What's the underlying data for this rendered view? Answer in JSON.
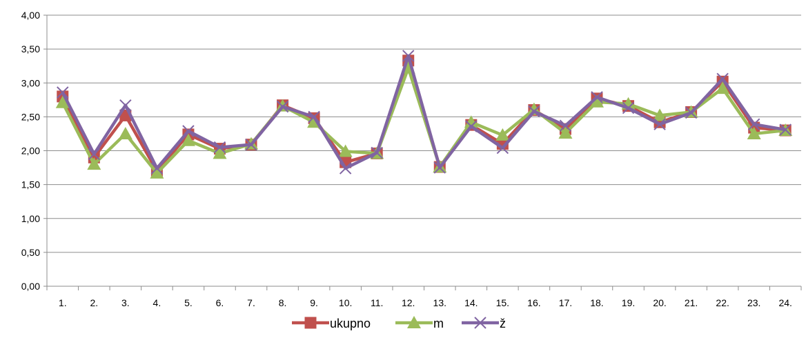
{
  "chart_data": {
    "type": "line",
    "title": "",
    "xlabel": "",
    "ylabel": "",
    "ylim": [
      0,
      4
    ],
    "yticks": [
      "0,00",
      "0,50",
      "1,00",
      "1,50",
      "2,00",
      "2,50",
      "3,00",
      "3,50",
      "4,00"
    ],
    "grid": true,
    "legend_position": "bottom",
    "categories": [
      "1.",
      "2.",
      "3.",
      "4.",
      "5.",
      "6.",
      "7.",
      "8.",
      "9.",
      "10.",
      "11.",
      "12.",
      "13.",
      "14.",
      "15.",
      "16.",
      "17.",
      "18.",
      "19.",
      "20.",
      "21.",
      "22.",
      "23.",
      "24."
    ],
    "series": [
      {
        "name": "ukupno",
        "color": "#c0504d",
        "marker": "square",
        "values": [
          2.8,
          1.9,
          2.52,
          1.7,
          2.24,
          2.03,
          2.09,
          2.67,
          2.48,
          1.83,
          1.96,
          3.33,
          1.76,
          2.38,
          2.1,
          2.6,
          2.32,
          2.77,
          2.66,
          2.42,
          2.57,
          3.02,
          2.34,
          2.3
        ]
      },
      {
        "name": "m",
        "color": "#9bbb59",
        "marker": "triangle",
        "values": [
          2.71,
          1.8,
          2.25,
          1.67,
          2.15,
          1.96,
          2.1,
          2.66,
          2.42,
          1.99,
          1.96,
          3.22,
          1.76,
          2.42,
          2.23,
          2.61,
          2.26,
          2.72,
          2.69,
          2.52,
          2.57,
          2.92,
          2.25,
          2.3
        ]
      },
      {
        "name": "ž",
        "color": "#8064a2",
        "marker": "x",
        "values": [
          2.86,
          1.95,
          2.67,
          1.74,
          2.29,
          2.05,
          2.09,
          2.65,
          2.5,
          1.74,
          1.97,
          3.4,
          1.75,
          2.36,
          2.04,
          2.58,
          2.37,
          2.79,
          2.63,
          2.39,
          2.56,
          3.06,
          2.39,
          2.31
        ]
      }
    ]
  }
}
